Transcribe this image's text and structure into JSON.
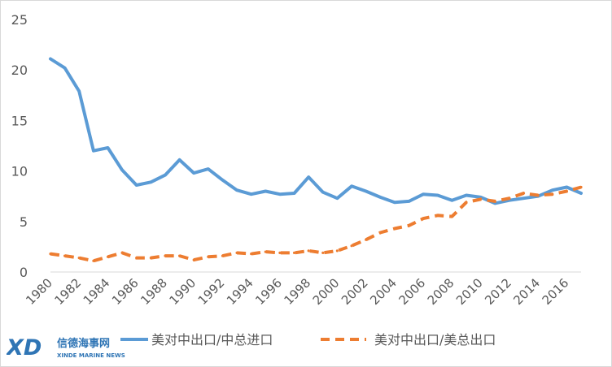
{
  "chart_data": {
    "type": "line",
    "x": [
      1980,
      1981,
      1982,
      1983,
      1984,
      1985,
      1986,
      1987,
      1988,
      1989,
      1990,
      1991,
      1992,
      1993,
      1994,
      1995,
      1996,
      1997,
      1998,
      1999,
      2000,
      2001,
      2002,
      2003,
      2004,
      2005,
      2006,
      2007,
      2008,
      2009,
      2010,
      2011,
      2012,
      2013,
      2014,
      2015,
      2016,
      2017
    ],
    "x_tick_labels": [
      "1980",
      "1982",
      "1984",
      "1986",
      "1988",
      "1990",
      "1992",
      "1994",
      "1996",
      "1998",
      "2000",
      "2002",
      "2004",
      "2006",
      "2008",
      "2010",
      "2012",
      "2014",
      "2016"
    ],
    "y_tick_labels": [
      "0",
      "5",
      "10",
      "15",
      "20",
      "25"
    ],
    "ylim": [
      0,
      25
    ],
    "grid": false,
    "legend_position": "bottom",
    "series": [
      {
        "name": "美对中出口/中总进口",
        "color": "#5b9bd5",
        "style": "solid",
        "values": [
          21.1,
          20.2,
          17.9,
          12.0,
          12.3,
          10.1,
          8.6,
          8.9,
          9.6,
          11.1,
          9.8,
          10.2,
          9.1,
          8.1,
          7.7,
          8.0,
          7.7,
          7.8,
          9.4,
          7.9,
          7.3,
          8.5,
          8.0,
          7.4,
          6.9,
          7.0,
          7.7,
          7.6,
          7.1,
          7.6,
          7.4,
          6.8,
          7.1,
          7.3,
          7.5,
          8.1,
          8.4,
          7.8
        ]
      },
      {
        "name": "美对中出口/美总出口",
        "color": "#ed7d31",
        "style": "dashed",
        "values": [
          1.8,
          1.6,
          1.4,
          1.1,
          1.5,
          1.9,
          1.4,
          1.4,
          1.6,
          1.6,
          1.2,
          1.5,
          1.6,
          1.9,
          1.8,
          2.0,
          1.9,
          1.9,
          2.1,
          1.9,
          2.1,
          2.6,
          3.2,
          3.9,
          4.3,
          4.6,
          5.3,
          5.6,
          5.5,
          6.9,
          7.2,
          7.0,
          7.3,
          7.8,
          7.6,
          7.7,
          8.0,
          8.4
        ]
      }
    ]
  },
  "watermark": {
    "logo_text": "XD",
    "chinese_name": "信德海事网",
    "english_name": "XINDE MARINE NEWS"
  }
}
